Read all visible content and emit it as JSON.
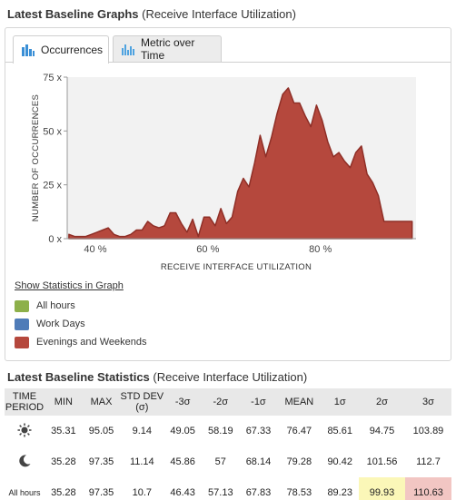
{
  "graphs": {
    "title_bold": "Latest Baseline Graphs",
    "title_rest": " (Receive Interface Utilization)",
    "tabs": [
      {
        "label": "Occurrences",
        "active": true,
        "icon": "bar-chart-icon"
      },
      {
        "label": "Metric over Time",
        "active": false,
        "icon": "metric-chart-icon"
      }
    ]
  },
  "chart_data": {
    "type": "area",
    "title": "",
    "xlabel": "RECEIVE INTERFACE UTILIZATION",
    "ylabel": "NUMBER OF OCCURRENCES",
    "xlim": [
      35,
      97
    ],
    "ylim": [
      0,
      75
    ],
    "x_ticks": [
      {
        "value": 40,
        "label": "40 %"
      },
      {
        "value": 60,
        "label": "60 %"
      },
      {
        "value": 80,
        "label": "80 %"
      }
    ],
    "y_ticks": [
      {
        "value": 0,
        "label": "0 x"
      },
      {
        "value": 25,
        "label": "25 x"
      },
      {
        "value": 50,
        "label": "50 x"
      },
      {
        "value": 75,
        "label": "75 x"
      }
    ],
    "series": [
      {
        "name": "Evenings and Weekends",
        "color": "#b5483d",
        "x": [
          35.3,
          36.3,
          38.3,
          39.3,
          40.3,
          41.3,
          42.3,
          43.3,
          44.3,
          45.3,
          46.3,
          47.3,
          48.3,
          49.3,
          50.3,
          51.3,
          52.3,
          53.3,
          54.3,
          55.3,
          56.3,
          57.3,
          58.3,
          59.3,
          60.3,
          61.3,
          62.3,
          63.3,
          64.3,
          65.3,
          66.3,
          67.3,
          68.3,
          69.3,
          70.3,
          71.3,
          72.3,
          73.3,
          74.3,
          75.3,
          76.3,
          77.3,
          78.3,
          79.3,
          80.3,
          81.3,
          82.3,
          83.3,
          84.3,
          85.3,
          86.3,
          87.3,
          88.3,
          89.3,
          90.3,
          91.3,
          92.3,
          93.3,
          94.3,
          95.3,
          96.3
        ],
        "values": [
          2,
          1,
          1,
          2,
          3,
          4,
          5,
          2,
          1,
          1,
          2,
          4,
          4,
          8,
          6,
          5,
          6,
          12,
          12,
          7,
          3,
          9,
          1,
          10,
          10,
          6,
          14,
          7,
          10,
          22,
          28,
          24,
          35,
          48,
          38,
          47,
          58,
          67,
          70,
          63,
          63,
          57,
          52,
          62,
          55,
          45,
          38,
          40,
          36,
          33,
          40,
          43,
          30,
          26,
          20,
          8,
          8,
          8,
          8,
          8,
          8
        ]
      }
    ],
    "legend": [
      {
        "label": "All hours",
        "color": "#8db04a"
      },
      {
        "label": "Work Days",
        "color": "#4f7cb8"
      },
      {
        "label": "Evenings and Weekends",
        "color": "#b5483d"
      }
    ],
    "grid": false
  },
  "legend_link": "Show Statistics in Graph",
  "stats": {
    "title_bold": "Latest Baseline Statistics",
    "title_rest": " (Receive Interface Utilization)",
    "headers": [
      "TIME PERIOD",
      "MIN",
      "MAX",
      "STD DEV (σ)",
      "-3σ",
      "-2σ",
      "-1σ",
      "MEAN",
      "1σ",
      "2σ",
      "3σ"
    ],
    "rows": [
      {
        "period": "sun-icon",
        "values": [
          "35.31",
          "95.05",
          "9.14",
          "49.05",
          "58.19",
          "67.33",
          "76.47",
          "85.61",
          "94.75",
          "103.89"
        ]
      },
      {
        "period": "moon-icon",
        "values": [
          "35.28",
          "97.35",
          "11.14",
          "45.86",
          "57",
          "68.14",
          "79.28",
          "90.42",
          "101.56",
          "112.7"
        ]
      },
      {
        "period": "All hours",
        "values": [
          "35.28",
          "97.35",
          "10.7",
          "46.43",
          "57.13",
          "67.83",
          "78.53",
          "89.23",
          "99.93",
          "110.63"
        ]
      }
    ]
  }
}
